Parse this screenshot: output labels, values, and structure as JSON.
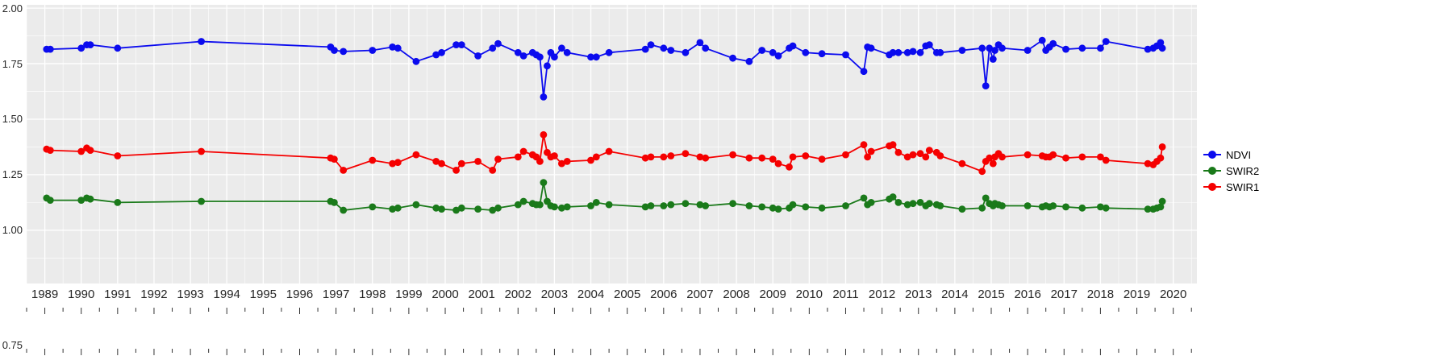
{
  "figure": {
    "background": "#FFFFFF",
    "panel_background": "#EBEBEB",
    "gridline_color": "#FFFFFF",
    "tick_color": "#333333"
  },
  "chart_data": {
    "type": "line",
    "title": "",
    "xlabel": "",
    "ylabel": "",
    "grid": true,
    "legend_position": "right",
    "xlim": [
      1988.5,
      2020.65
    ],
    "ylim": [
      0.76,
      2.015
    ],
    "y_ticks": [
      "2.00",
      "1.75",
      "1.50",
      "1.25",
      "1.00",
      "0.75"
    ],
    "x_ticks": [
      "1989",
      "1990",
      "1991",
      "1992",
      "1993",
      "1994",
      "1995",
      "1996",
      "1997",
      "1998",
      "1999",
      "2000",
      "2001",
      "2002",
      "2003",
      "2004",
      "2005",
      "2006",
      "2007",
      "2008",
      "2009",
      "2010",
      "2011",
      "2012",
      "2013",
      "2014",
      "2015",
      "2016",
      "2017",
      "2018",
      "2019",
      "2020"
    ],
    "x": [
      1989.05,
      1989.15,
      1990.0,
      1990.15,
      1990.25,
      1991.0,
      1993.3,
      1996.85,
      1996.95,
      1997.2,
      1998.0,
      1998.55,
      1998.7,
      1999.2,
      1999.75,
      1999.9,
      2000.3,
      2000.45,
      2000.9,
      2001.3,
      2001.45,
      2002.0,
      2002.15,
      2002.4,
      2002.5,
      2002.6,
      2002.7,
      2002.8,
      2002.9,
      2003.0,
      2003.2,
      2003.35,
      2004.0,
      2004.15,
      2004.5,
      2005.5,
      2005.65,
      2006.0,
      2006.2,
      2006.6,
      2007.0,
      2007.15,
      2007.9,
      2008.35,
      2008.7,
      2009.0,
      2009.15,
      2009.45,
      2009.55,
      2009.9,
      2010.35,
      2011.0,
      2011.5,
      2011.6,
      2011.7,
      2012.2,
      2012.3,
      2012.45,
      2012.7,
      2012.85,
      2013.05,
      2013.2,
      2013.3,
      2013.5,
      2013.6,
      2014.2,
      2014.75,
      2014.85,
      2014.95,
      2015.05,
      2015.1,
      2015.2,
      2015.3,
      2016.0,
      2016.4,
      2016.5,
      2016.6,
      2016.7,
      2017.05,
      2017.5,
      2018.0,
      2018.15,
      2019.3,
      2019.45,
      2019.55,
      2019.65,
      2019.7
    ],
    "series": [
      {
        "name": "NDVI",
        "color": "#0B0BEE",
        "values": [
          1.815,
          1.815,
          1.82,
          1.835,
          1.835,
          1.82,
          1.85,
          1.825,
          1.81,
          1.805,
          1.81,
          1.825,
          1.82,
          1.76,
          1.79,
          1.8,
          1.835,
          1.835,
          1.785,
          1.82,
          1.84,
          1.8,
          1.785,
          1.8,
          1.79,
          1.78,
          1.6,
          1.74,
          1.8,
          1.78,
          1.82,
          1.8,
          1.78,
          1.78,
          1.8,
          1.815,
          1.835,
          1.82,
          1.81,
          1.8,
          1.845,
          1.82,
          1.775,
          1.76,
          1.81,
          1.8,
          1.785,
          1.82,
          1.83,
          1.8,
          1.795,
          1.79,
          1.715,
          1.825,
          1.82,
          1.79,
          1.8,
          1.8,
          1.8,
          1.805,
          1.8,
          1.83,
          1.835,
          1.8,
          1.8,
          1.81,
          1.82,
          1.65,
          1.82,
          1.77,
          1.81,
          1.835,
          1.82,
          1.81,
          1.855,
          1.81,
          1.825,
          1.84,
          1.815,
          1.82,
          1.82,
          1.85,
          1.815,
          1.82,
          1.83,
          1.845,
          1.82
        ]
      },
      {
        "name": "SWIR2",
        "color": "#1A7A1A",
        "values": [
          1.145,
          1.135,
          1.135,
          1.145,
          1.14,
          1.125,
          1.13,
          1.13,
          1.125,
          1.09,
          1.105,
          1.095,
          1.1,
          1.115,
          1.1,
          1.095,
          1.09,
          1.1,
          1.095,
          1.09,
          1.1,
          1.115,
          1.13,
          1.12,
          1.115,
          1.115,
          1.215,
          1.13,
          1.11,
          1.105,
          1.1,
          1.105,
          1.11,
          1.125,
          1.115,
          1.105,
          1.11,
          1.11,
          1.115,
          1.12,
          1.115,
          1.11,
          1.12,
          1.11,
          1.105,
          1.1,
          1.095,
          1.1,
          1.115,
          1.105,
          1.1,
          1.11,
          1.145,
          1.115,
          1.125,
          1.14,
          1.15,
          1.125,
          1.115,
          1.12,
          1.125,
          1.11,
          1.12,
          1.115,
          1.11,
          1.095,
          1.1,
          1.145,
          1.12,
          1.11,
          1.12,
          1.115,
          1.11,
          1.11,
          1.105,
          1.11,
          1.105,
          1.11,
          1.105,
          1.1,
          1.105,
          1.1,
          1.095,
          1.095,
          1.1,
          1.105,
          1.13
        ]
      },
      {
        "name": "SWIR1",
        "color": "#F50000",
        "values": [
          1.365,
          1.36,
          1.355,
          1.37,
          1.36,
          1.335,
          1.355,
          1.325,
          1.32,
          1.27,
          1.315,
          1.3,
          1.305,
          1.34,
          1.31,
          1.3,
          1.27,
          1.3,
          1.31,
          1.27,
          1.32,
          1.33,
          1.355,
          1.34,
          1.33,
          1.31,
          1.43,
          1.35,
          1.33,
          1.335,
          1.3,
          1.31,
          1.315,
          1.33,
          1.355,
          1.325,
          1.33,
          1.33,
          1.335,
          1.345,
          1.33,
          1.325,
          1.34,
          1.325,
          1.325,
          1.32,
          1.3,
          1.285,
          1.33,
          1.335,
          1.32,
          1.34,
          1.385,
          1.33,
          1.355,
          1.38,
          1.385,
          1.35,
          1.33,
          1.34,
          1.345,
          1.33,
          1.36,
          1.35,
          1.335,
          1.3,
          1.265,
          1.31,
          1.325,
          1.3,
          1.33,
          1.345,
          1.33,
          1.34,
          1.335,
          1.33,
          1.33,
          1.34,
          1.325,
          1.33,
          1.33,
          1.315,
          1.3,
          1.295,
          1.31,
          1.325,
          1.375
        ]
      }
    ]
  }
}
